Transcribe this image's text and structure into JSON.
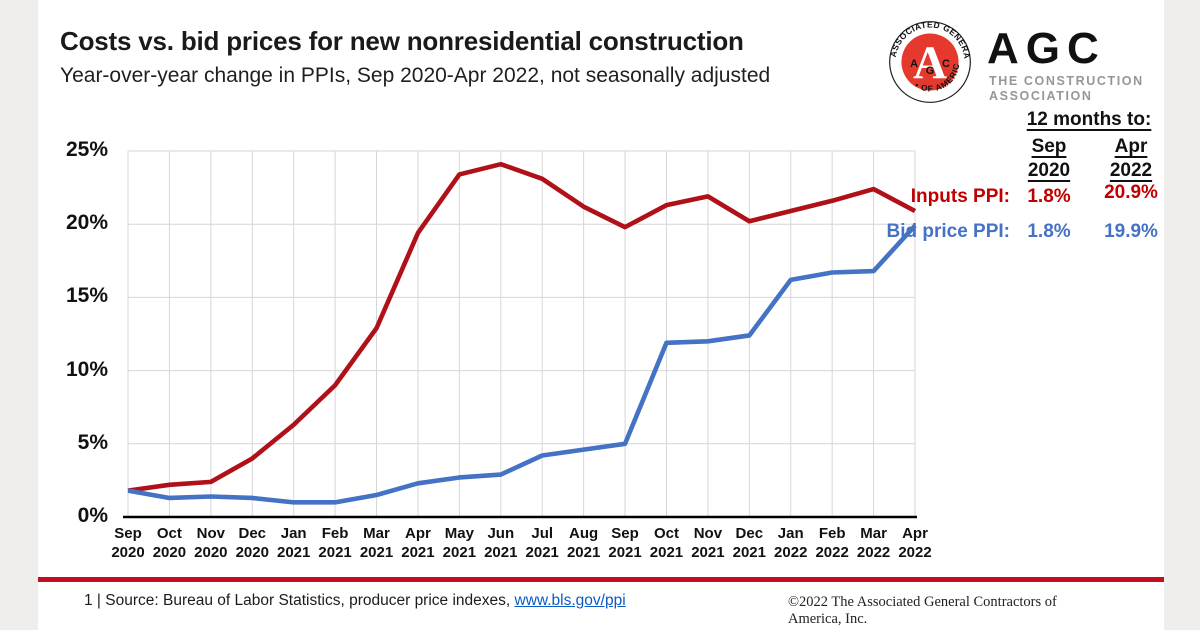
{
  "header": {
    "title": "Costs vs. bid prices for new nonresidential construction",
    "subtitle": "Year-over-year change in PPIs, Sep 2020-Apr 2022, not seasonally adjusted"
  },
  "logo": {
    "seal_text_top": "ASSOCIATED GENERAL CONTRACTORS",
    "seal_text_bottom": "• OF AMERICA •",
    "seal_letter_big": "A",
    "seal_letters_small": {
      "left": "A",
      "mid": "G",
      "right": "C"
    },
    "wordmark": "AGC",
    "tagline_line1": "THE CONSTRUCTION",
    "tagline_line2": "ASSOCIATION",
    "seal_red": "#e6392e"
  },
  "annotation": {
    "heading": "12 months to:",
    "col1_month": "Sep",
    "col1_year": "2020",
    "col2_month": "Apr",
    "col2_year": "2022",
    "rows": [
      {
        "label": "Inputs PPI:",
        "v1": "1.8%",
        "v2": "20.9%",
        "color": "#c00000"
      },
      {
        "label": "Bid price PPI:",
        "v1": "1.8%",
        "v2": "19.9%",
        "color": "#4472c4"
      }
    ]
  },
  "chart_data": {
    "type": "line",
    "title": "Costs vs. bid prices for new nonresidential construction",
    "subtitle": "Year-over-year change in PPIs, Sep 2020-Apr 2022, not seasonally adjusted",
    "categories": [
      "Sep 2020",
      "Oct 2020",
      "Nov 2020",
      "Dec 2020",
      "Jan 2021",
      "Feb 2021",
      "Mar 2021",
      "Apr 2021",
      "May 2021",
      "Jun 2021",
      "Jul 2021",
      "Aug 2021",
      "Sep 2021",
      "Oct 2021",
      "Nov 2021",
      "Dec 2021",
      "Jan 2022",
      "Feb 2022",
      "Mar 2022",
      "Apr 2022"
    ],
    "series": [
      {
        "name": "Inputs PPI",
        "color": "#b01018",
        "values": [
          1.8,
          2.2,
          2.4,
          4.0,
          6.3,
          9.0,
          12.9,
          19.4,
          23.4,
          24.1,
          23.1,
          21.2,
          19.8,
          21.3,
          21.9,
          20.2,
          20.9,
          21.6,
          22.4,
          20.9
        ]
      },
      {
        "name": "Bid price PPI",
        "color": "#4472c4",
        "values": [
          1.8,
          1.3,
          1.4,
          1.3,
          1.0,
          1.0,
          1.5,
          2.3,
          2.7,
          2.9,
          4.2,
          4.6,
          5.0,
          11.9,
          12.0,
          12.4,
          16.2,
          16.7,
          16.8,
          19.9
        ]
      }
    ],
    "ylim": [
      0,
      25
    ],
    "yticks": [
      0,
      5,
      10,
      15,
      20,
      25
    ],
    "ytick_suffix": "%",
    "grid": true,
    "grid_color": "#d6d6d6",
    "axis_color": "#000000",
    "legend_position": "right-annotation"
  },
  "footer": {
    "source_prefix": "1 | Source: Bureau of Labor Statistics, producer price indexes, ",
    "source_link": "www.bls.gov/ppi",
    "copyright": "©2022 The Associated General Contractors of America, Inc."
  }
}
